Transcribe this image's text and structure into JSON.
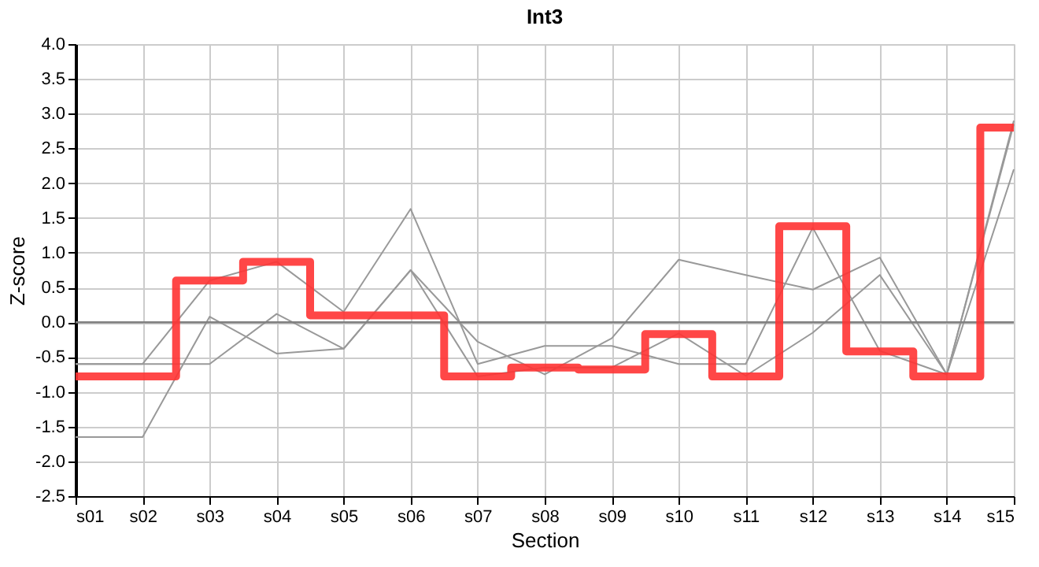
{
  "chart_data": {
    "type": "line",
    "title": "Int3",
    "xlabel": "Section",
    "ylabel": "Z-score",
    "categories": [
      "s01",
      "s02",
      "s03",
      "s04",
      "s05",
      "s06",
      "s07",
      "s08",
      "s09",
      "s10",
      "s11",
      "s12",
      "s13",
      "s14",
      "s15"
    ],
    "series": [
      {
        "type": "line",
        "color": "#999999",
        "values": [
          -0.6,
          -0.6,
          0.6,
          0.87,
          0.15,
          1.63,
          -0.6,
          -0.34,
          -0.34,
          -0.6,
          -0.6,
          1.36,
          -0.41,
          -0.75,
          2.85
        ]
      },
      {
        "type": "line",
        "color": "#999999",
        "values": [
          -1.65,
          -1.65,
          0.08,
          -0.45,
          -0.38,
          0.75,
          -0.28,
          -0.75,
          -0.23,
          0.9,
          0.68,
          0.47,
          0.93,
          -0.75,
          2.9
        ]
      },
      {
        "type": "line",
        "color": "#999999",
        "values": [
          -0.6,
          -0.6,
          -0.6,
          0.12,
          -0.38,
          0.75,
          -0.78,
          -0.65,
          -0.65,
          -0.16,
          -0.77,
          -0.15,
          0.68,
          -0.75,
          2.2
        ]
      },
      {
        "type": "step",
        "color": "#ff3333",
        "values": [
          -0.78,
          -0.78,
          0.6,
          0.87,
          0.1,
          0.1,
          -0.78,
          -0.65,
          -0.68,
          -0.17,
          -0.78,
          1.38,
          -0.42,
          -0.78,
          2.8
        ]
      }
    ],
    "ylim": [
      -2.5,
      4
    ],
    "yticks": [
      -2.5,
      {
        "value": -2,
        "label": "-2.0"
      },
      -1.5,
      {
        "value": -1,
        "label": "-1.0"
      },
      -0.5,
      {
        "value": 0,
        "label": "0.0"
      },
      0.5,
      {
        "value": 1,
        "label": "1.0"
      },
      1.5,
      {
        "value": 2,
        "label": "2.0"
      },
      2.5,
      {
        "value": 3,
        "label": "3.0"
      },
      3.5,
      {
        "value": 4,
        "label": "4.0"
      }
    ],
    "ref_lines": [
      {
        "axis": "y",
        "value": 0,
        "color": "#808080"
      }
    ],
    "grid": true
  }
}
